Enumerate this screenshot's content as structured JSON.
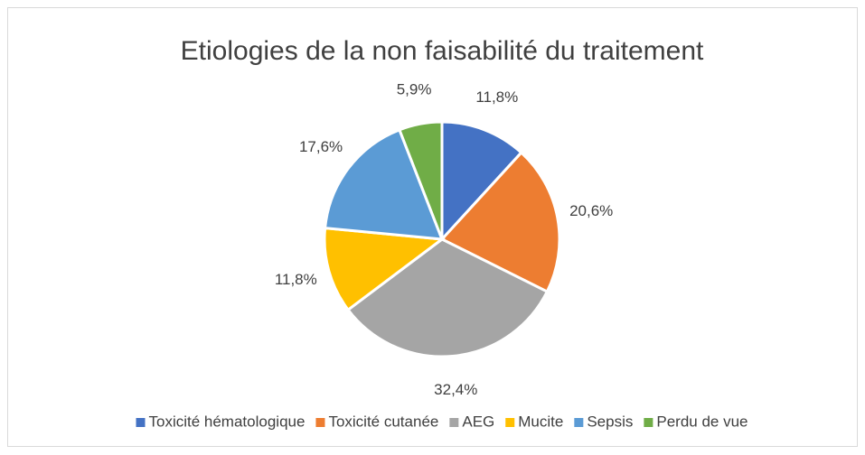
{
  "chart_data": {
    "type": "pie",
    "title": "Etiologies de la non faisabilité du traitement",
    "categories": [
      "Toxicité hématologique",
      "Toxicité cutanée",
      "AEG",
      "Mucite",
      "Sepsis",
      "Perdu de vue"
    ],
    "values": [
      11.8,
      20.6,
      32.4,
      11.8,
      17.6,
      5.9
    ],
    "value_labels": [
      "11,8%",
      "20,6%",
      "32,4%",
      "11,8%",
      "17,6%",
      "5,9%"
    ],
    "colors": [
      "#4472c4",
      "#ed7d31",
      "#a5a5a5",
      "#ffc000",
      "#5b9bd5",
      "#70ad47"
    ],
    "legend": "bottom"
  }
}
